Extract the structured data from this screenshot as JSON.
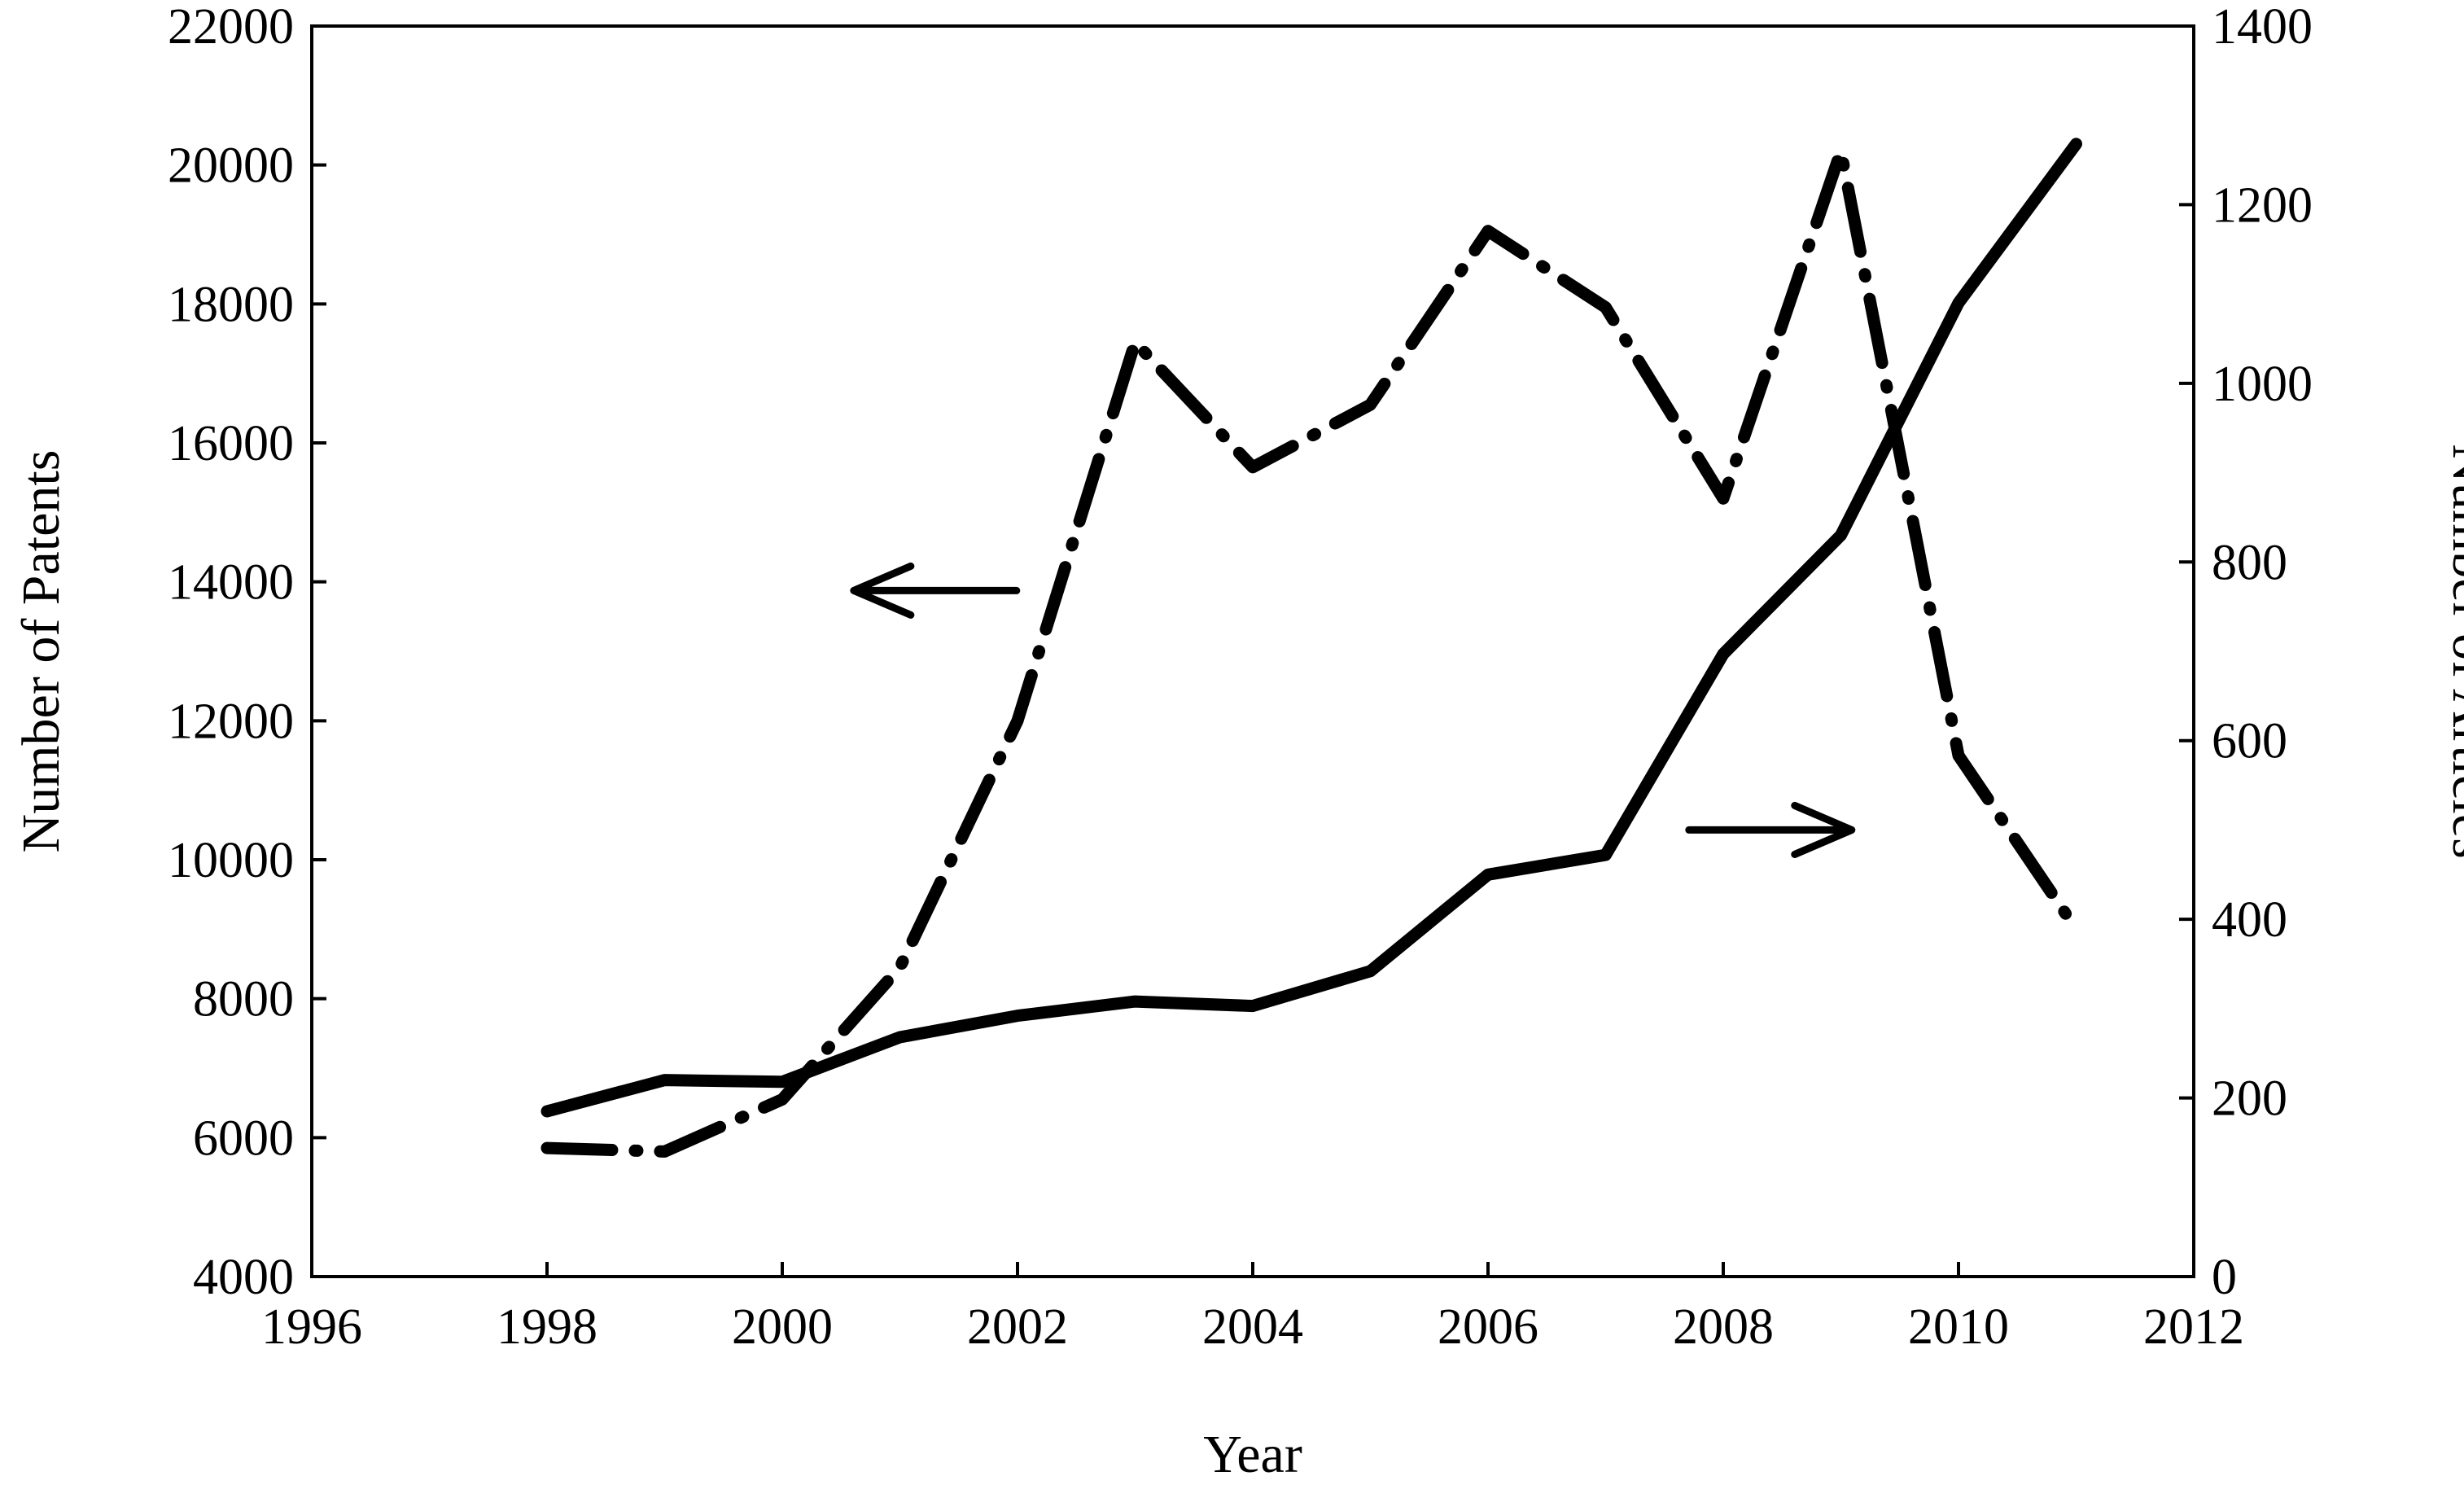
{
  "chart_data": {
    "type": "line",
    "title": "",
    "xlabel": "Year",
    "ylabel": "Number of Patents",
    "y2label": "Number of Articles",
    "xlim": [
      1996,
      2012
    ],
    "ylim": [
      4000,
      22000
    ],
    "y2lim": [
      0,
      1400
    ],
    "xticks": [
      1996,
      1998,
      2000,
      2002,
      2004,
      2006,
      2008,
      2010,
      2012
    ],
    "yticks": [
      4000,
      6000,
      8000,
      10000,
      12000,
      14000,
      16000,
      18000,
      20000,
      22000
    ],
    "y2ticks": [
      0,
      200,
      400,
      600,
      800,
      1000,
      1200,
      1400
    ],
    "grid": false,
    "legend": "none",
    "series": [
      {
        "axis": "left",
        "style": "dash-dot",
        "color": "#000000",
        "x": [
          1998,
          1999,
          2000,
          2001,
          2002,
          2003,
          2004,
          2005,
          2006,
          2007,
          2008,
          2009,
          2010,
          2011
        ],
        "values": [
          5850,
          5800,
          6550,
          8450,
          12000,
          17450,
          15650,
          16550,
          19050,
          17950,
          15200,
          20200,
          11500,
          9000
        ]
      },
      {
        "axis": "right",
        "style": "solid",
        "color": "#000000",
        "x": [
          1998,
          1999,
          2000,
          2001,
          2002,
          2003,
          2004,
          2005,
          2006,
          2007,
          2008,
          2009,
          2010,
          2011
        ],
        "values": [
          185,
          220,
          218,
          268,
          292,
          308,
          303,
          342,
          450,
          472,
          697,
          830,
          1090,
          1268
        ]
      }
    ],
    "annotations": [
      {
        "type": "arrow",
        "direction": "left",
        "points_to_axis": "left",
        "near_x": 2001.3,
        "near_y2": 768
      },
      {
        "type": "arrow",
        "direction": "right",
        "points_to_axis": "right",
        "near_x": 2008.4,
        "near_y2": 500
      }
    ]
  }
}
